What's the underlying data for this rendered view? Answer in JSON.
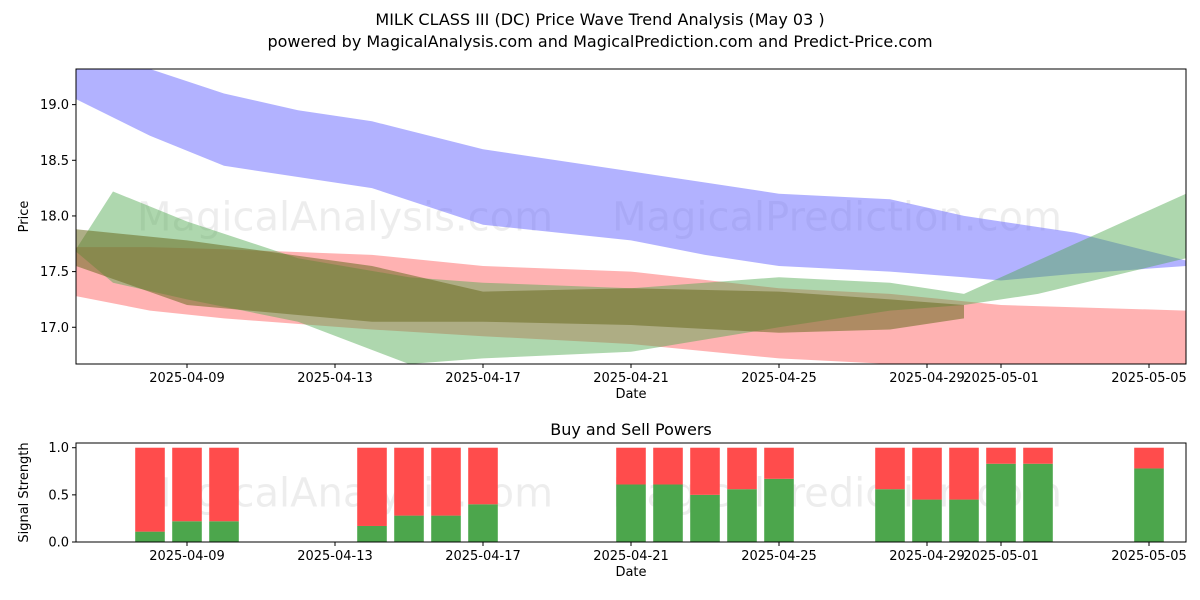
{
  "title_line1": "MILK CLASS III (DC) Price Wave Trend Analysis (May 03 )",
  "title_line2": "powered by MagicalAnalysis.com and MagicalPrediction.com and Predict-Price.com",
  "watermarks": [
    "MagicalAnalysis.com",
    "MagicalPrediction.com"
  ],
  "colors": {
    "blue": "#6666ff",
    "red": "#ff6666",
    "green": "#4ca64c",
    "olive": "#6b6b22",
    "buy": "#4ca64c",
    "sell": "#ff4c4c"
  },
  "chart_data": [
    {
      "type": "area",
      "xlabel": "Date",
      "ylabel": "Price",
      "x_ticks": [
        "2025-04-09",
        "2025-04-13",
        "2025-04-17",
        "2025-04-21",
        "2025-04-25",
        "2025-04-29",
        "2025-05-01",
        "2025-05-05"
      ],
      "y_ticks": [
        17.0,
        17.5,
        18.0,
        18.5,
        19.0
      ],
      "xlim": [
        "2025-04-06",
        "2025-05-06"
      ],
      "ylim": [
        16.67,
        19.32
      ],
      "bands": [
        {
          "color": "blue",
          "opacity": 0.5,
          "dates": [
            "2025-04-06",
            "2025-04-08",
            "2025-04-10",
            "2025-04-12",
            "2025-04-14",
            "2025-04-17",
            "2025-04-21",
            "2025-04-23",
            "2025-04-25",
            "2025-04-28",
            "2025-04-30",
            "2025-05-01",
            "2025-05-03",
            "2025-05-06"
          ],
          "upper": [
            19.32,
            19.32,
            19.1,
            18.95,
            18.85,
            18.6,
            18.4,
            18.3,
            18.2,
            18.15,
            18.0,
            17.95,
            17.85,
            17.6
          ],
          "lower": [
            19.05,
            18.72,
            18.45,
            18.35,
            18.25,
            17.92,
            17.78,
            17.65,
            17.55,
            17.5,
            17.45,
            17.42,
            17.48,
            17.55
          ]
        },
        {
          "color": "red",
          "opacity": 0.5,
          "dates": [
            "2025-04-06",
            "2025-04-08",
            "2025-04-10",
            "2025-04-14",
            "2025-04-17",
            "2025-04-21",
            "2025-04-25",
            "2025-04-28",
            "2025-05-01",
            "2025-05-06"
          ],
          "upper": [
            17.72,
            17.72,
            17.7,
            17.65,
            17.55,
            17.5,
            17.35,
            17.3,
            17.2,
            17.15
          ],
          "lower": [
            17.28,
            17.15,
            17.08,
            16.98,
            16.92,
            16.85,
            16.72,
            16.67,
            16.67,
            16.67
          ]
        },
        {
          "color": "green",
          "opacity": 0.45,
          "dates": [
            "2025-04-06",
            "2025-04-07",
            "2025-04-09",
            "2025-04-12",
            "2025-04-15",
            "2025-04-17",
            "2025-04-21",
            "2025-04-25",
            "2025-04-28",
            "2025-04-30",
            "2025-05-02",
            "2025-05-06"
          ],
          "upper": [
            17.7,
            18.22,
            17.95,
            17.62,
            17.45,
            17.4,
            17.35,
            17.45,
            17.4,
            17.3,
            17.6,
            18.2
          ],
          "lower": [
            17.68,
            17.4,
            17.25,
            17.05,
            16.67,
            16.72,
            16.78,
            17.0,
            17.15,
            17.2,
            17.3,
            17.62
          ]
        },
        {
          "color": "olive",
          "opacity": 0.55,
          "dates": [
            "2025-04-06",
            "2025-04-09",
            "2025-04-14",
            "2025-04-17",
            "2025-04-21",
            "2025-04-25",
            "2025-04-28",
            "2025-04-30"
          ],
          "upper": [
            17.88,
            17.78,
            17.55,
            17.32,
            17.35,
            17.32,
            17.25,
            17.2
          ],
          "lower": [
            17.55,
            17.2,
            17.05,
            17.05,
            17.02,
            16.95,
            16.98,
            17.08
          ]
        }
      ]
    },
    {
      "type": "bar",
      "title": "Buy and Sell Powers",
      "xlabel": "Date",
      "ylabel": "Signal Strength",
      "x_ticks": [
        "2025-04-09",
        "2025-04-13",
        "2025-04-17",
        "2025-04-21",
        "2025-04-25",
        "2025-04-29",
        "2025-05-01",
        "2025-05-05"
      ],
      "y_ticks": [
        0.0,
        0.5,
        1.0
      ],
      "xlim": [
        "2025-04-06",
        "2025-05-06"
      ],
      "ylim": [
        0,
        1.05
      ],
      "dates": [
        "2025-04-08",
        "2025-04-09",
        "2025-04-10",
        "2025-04-14",
        "2025-04-15",
        "2025-04-16",
        "2025-04-17",
        "2025-04-21",
        "2025-04-22",
        "2025-04-23",
        "2025-04-24",
        "2025-04-25",
        "2025-04-28",
        "2025-04-29",
        "2025-04-30",
        "2025-05-01",
        "2025-05-02",
        "2025-05-05"
      ],
      "series": [
        {
          "name": "buy",
          "values": [
            0.11,
            0.22,
            0.22,
            0.17,
            0.28,
            0.28,
            0.4,
            0.61,
            0.61,
            0.5,
            0.56,
            0.67,
            0.56,
            0.45,
            0.45,
            0.83,
            0.83,
            0.78
          ]
        },
        {
          "name": "sell",
          "values": [
            0.89,
            0.78,
            0.78,
            0.83,
            0.72,
            0.72,
            0.6,
            0.39,
            0.39,
            0.5,
            0.44,
            0.33,
            0.44,
            0.55,
            0.55,
            0.17,
            0.17,
            0.22
          ]
        }
      ]
    }
  ]
}
